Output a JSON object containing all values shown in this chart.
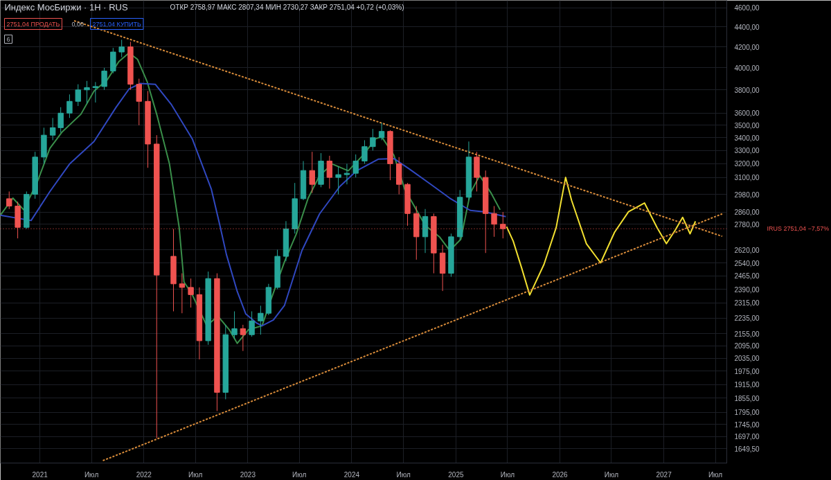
{
  "chart_data": {
    "type": "candlestick",
    "title": "Индекс МосБиржи · 1H · RUS",
    "subtitle": "ОТКР 2758,97  МАКС 2807,34  МИН 2730,27  ЗАКР 2751,04  +0,72 (+0,03%)",
    "annotations": [
      "2751,04 ПРОДАТЬ",
      "0,00",
      "2751,04 КУПИТЬ",
      "6"
    ],
    "x": [
      "2020-09-15",
      "2020-10-15",
      "2020-11-15",
      "2020-12-15",
      "2021-01-15",
      "2021-02-15",
      "2021-03-15",
      "2021-04-15",
      "2021-05-15",
      "2021-06-15",
      "2021-07-15",
      "2021-08-15",
      "2021-09-15",
      "2021-10-15",
      "2021-11-15",
      "2021-12-15",
      "2022-01-15",
      "2022-02-15",
      "2022-04-15",
      "2022-05-15",
      "2022-06-15",
      "2022-07-15",
      "2022-08-15",
      "2022-09-15",
      "2022-10-15",
      "2022-11-15",
      "2022-12-15",
      "2023-01-15",
      "2023-02-15",
      "2023-03-15",
      "2023-04-15",
      "2023-05-15",
      "2023-06-15",
      "2023-07-15",
      "2023-08-15",
      "2023-09-15",
      "2023-10-15",
      "2023-11-15",
      "2023-12-15",
      "2024-01-15",
      "2024-02-15",
      "2024-03-15",
      "2024-04-15",
      "2024-05-15",
      "2024-06-15",
      "2024-07-15",
      "2024-08-15",
      "2024-09-15",
      "2024-10-15",
      "2024-11-15",
      "2024-12-15",
      "2025-01-15",
      "2025-02-15",
      "2025-03-15",
      "2025-04-15",
      "2025-05-15",
      "2025-06-15"
    ],
    "ohlc": [
      [
        2950,
        3000,
        2880,
        2900
      ],
      [
        2900,
        2930,
        2690,
        2760
      ],
      [
        2760,
        3000,
        2750,
        2980
      ],
      [
        2980,
        3290,
        2950,
        3250
      ],
      [
        3250,
        3480,
        3200,
        3420
      ],
      [
        3420,
        3560,
        3380,
        3480
      ],
      [
        3480,
        3650,
        3440,
        3600
      ],
      [
        3600,
        3760,
        3560,
        3700
      ],
      [
        3700,
        3850,
        3660,
        3800
      ],
      [
        3800,
        3880,
        3680,
        3820
      ],
      [
        3820,
        3870,
        3690,
        3830
      ],
      [
        3830,
        4000,
        3800,
        3970
      ],
      [
        3970,
        4190,
        3950,
        4150
      ],
      [
        4150,
        4270,
        4100,
        4200
      ],
      [
        4200,
        4250,
        3800,
        3850
      ],
      [
        3850,
        3900,
        3500,
        3700
      ],
      [
        3700,
        3790,
        3170,
        3350
      ],
      [
        3350,
        3420,
        1690,
        2470
      ],
      [
        2580,
        2750,
        2270,
        2420
      ],
      [
        2420,
        2480,
        2260,
        2400
      ],
      [
        2400,
        2450,
        2290,
        2360
      ],
      [
        2360,
        2400,
        2030,
        2120
      ],
      [
        2120,
        2490,
        2100,
        2450
      ],
      [
        2450,
        2480,
        1800,
        1880
      ],
      [
        1880,
        2200,
        1850,
        2150
      ],
      [
        2150,
        2270,
        2130,
        2180
      ],
      [
        2180,
        2200,
        2070,
        2150
      ],
      [
        2150,
        2270,
        2140,
        2220
      ],
      [
        2220,
        2300,
        2150,
        2260
      ],
      [
        2260,
        2420,
        2250,
        2400
      ],
      [
        2400,
        2620,
        2390,
        2580
      ],
      [
        2580,
        2800,
        2550,
        2750
      ],
      [
        2750,
        3060,
        2720,
        2950
      ],
      [
        2950,
        3220,
        2940,
        3150
      ],
      [
        3150,
        3290,
        2990,
        3050
      ],
      [
        3050,
        3280,
        3030,
        3220
      ],
      [
        3220,
        3260,
        3020,
        3100
      ],
      [
        3100,
        3180,
        2980,
        3120
      ],
      [
        3120,
        3200,
        3050,
        3130
      ],
      [
        3130,
        3270,
        3100,
        3220
      ],
      [
        3220,
        3380,
        3200,
        3330
      ],
      [
        3330,
        3470,
        3300,
        3400
      ],
      [
        3400,
        3520,
        3380,
        3450
      ],
      [
        3450,
        3460,
        3080,
        3200
      ],
      [
        3200,
        3250,
        2980,
        3050
      ],
      [
        3050,
        3060,
        2770,
        2850
      ],
      [
        2850,
        2900,
        2560,
        2700
      ],
      [
        2700,
        2880,
        2600,
        2830
      ],
      [
        2830,
        2850,
        2480,
        2600
      ],
      [
        2600,
        2650,
        2380,
        2480
      ],
      [
        2480,
        2720,
        2460,
        2700
      ],
      [
        2700,
        3010,
        2680,
        2960
      ],
      [
        2960,
        3370,
        2940,
        3250
      ],
      [
        3250,
        3290,
        3000,
        3100
      ],
      [
        3100,
        3150,
        2600,
        2850
      ],
      [
        2850,
        2900,
        2700,
        2780
      ],
      [
        2780,
        2860,
        2690,
        2751.04
      ]
    ],
    "colors": [
      "#ef5350",
      "#ef5350",
      "#26a69a",
      "#26a69a",
      "#26a69a",
      "#26a69a",
      "#26a69a",
      "#26a69a",
      "#26a69a",
      "#26a69a",
      "#26a69a",
      "#26a69a",
      "#26a69a",
      "#26a69a",
      "#ef5350",
      "#ef5350",
      "#ef5350",
      "#ef5350",
      "#ef5350",
      "#ef5350",
      "#ef5350",
      "#ef5350",
      "#26a69a",
      "#ef5350",
      "#26a69a",
      "#26a69a",
      "#ef5350",
      "#26a69a",
      "#26a69a",
      "#26a69a",
      "#26a69a",
      "#26a69a",
      "#26a69a",
      "#26a69a",
      "#ef5350",
      "#26a69a",
      "#ef5350",
      "#26a69a",
      "#26a69a",
      "#26a69a",
      "#26a69a",
      "#26a69a",
      "#26a69a",
      "#ef5350",
      "#ef5350",
      "#ef5350",
      "#ef5350",
      "#26a69a",
      "#ef5350",
      "#ef5350",
      "#26a69a",
      "#26a69a",
      "#26a69a",
      "#ef5350",
      "#ef5350",
      "#ef5350",
      "#ef5350"
    ],
    "series": [
      {
        "type": "line",
        "color": "#3a8f4a",
        "x": [
          "2020-08-15",
          "2020-09-28",
          "2020-11-05",
          "2020-12-22",
          "2021-02-05",
          "2021-03-20",
          "2021-05-25",
          "2021-07-10",
          "2021-08-25",
          "2021-10-05",
          "2021-11-10",
          "2021-12-10",
          "2022-01-13",
          "2022-02-15",
          "2022-04-01",
          "2022-05-05",
          "2022-05-22",
          "2022-06-18",
          "2022-08-10",
          "2022-09-18",
          "2022-10-28",
          "2022-11-25",
          "2023-01-03",
          "2023-02-20",
          "2023-03-25",
          "2023-05-10",
          "2023-06-20",
          "2023-08-01",
          "2023-09-10",
          "2023-10-25",
          "2023-12-20",
          "2024-02-10",
          "2024-03-25",
          "2024-04-15",
          "2024-05-28",
          "2024-07-05",
          "2024-09-15",
          "2024-11-05",
          "2024-12-10",
          "2025-01-18",
          "2025-02-20",
          "2025-03-25",
          "2025-05-05",
          "2025-06-05"
        ],
        "values": [
          2839,
          2954,
          2875,
          3063,
          3317,
          3446,
          3591,
          3790,
          3888,
          4058,
          4142,
          4079,
          3870,
          3591,
          3198,
          2759,
          2430,
          2366,
          2195,
          2245,
          2175,
          2107,
          2175,
          2195,
          2340,
          2549,
          2716,
          2954,
          3113,
          3198,
          3148,
          3265,
          3391,
          3408,
          3265,
          3016,
          2772,
          2698,
          2615,
          2684,
          2987,
          3113,
          2987,
          2875
        ]
      },
      {
        "type": "line",
        "color": "#3048c0",
        "x": [
          "2020-08-15",
          "2020-12-01",
          "2021-02-05",
          "2021-04-15",
          "2021-07-10",
          "2021-09-25",
          "2021-11-10",
          "2021-12-20",
          "2022-02-10",
          "2022-04-08",
          "2022-06-20",
          "2022-08-26",
          "2022-09-25",
          "2022-10-18",
          "2022-11-25",
          "2022-12-25",
          "2023-02-01",
          "2023-02-20",
          "2023-04-01",
          "2023-05-10",
          "2023-07-10",
          "2023-09-10",
          "2023-11-20",
          "2024-01-18",
          "2024-04-03",
          "2024-05-28",
          "2024-07-20",
          "2024-10-05",
          "2024-12-10",
          "2025-02-20",
          "2025-04-10",
          "2025-06-25"
        ],
        "values": [
          2839,
          2804,
          3000,
          3198,
          3370,
          3648,
          3808,
          3857,
          3850,
          3671,
          3391,
          3016,
          2772,
          2590,
          2377,
          2256,
          2209,
          2195,
          2225,
          2302,
          2615,
          2848,
          3035,
          3148,
          3234,
          3239,
          3163,
          3050,
          2954,
          2871,
          2862,
          2830
        ]
      },
      {
        "type": "line",
        "color": "#f2e030",
        "x": [
          "2025-06-28",
          "2025-07-21",
          "2025-08-20",
          "2025-09-17",
          "2025-11-06",
          "2025-12-19",
          "2026-01-21",
          "2026-02-11",
          "2026-04-04",
          "2026-05-24",
          "2026-07-12",
          "2026-08-30",
          "2026-10-25",
          "2026-12-08",
          "2027-01-10",
          "2027-02-10",
          "2027-03-08",
          "2027-04-03",
          "2027-04-22"
        ],
        "values": [
          2764,
          2673,
          2509,
          2358,
          2532,
          2759,
          3100,
          2939,
          2657,
          2541,
          2729,
          2862,
          2921,
          2759,
          2657,
          2742,
          2825,
          2719,
          2799
        ]
      },
      {
        "type": "line",
        "color": "#d98c3a",
        "line_style": "dashed",
        "x": [
          "2021-05-01",
          "2027-07-25"
        ],
        "values": [
          4463,
          2703
        ]
      },
      {
        "type": "line",
        "color": "#d98c3a",
        "line_style": "dashed",
        "x": [
          "2021-08-10",
          "2027-07-25"
        ],
        "values": [
          1604,
          2848
        ]
      }
    ],
    "ref_lines": [
      {
        "axis": "y",
        "value": 2751.04,
        "label": "IRUS 2751,04 −7,57%",
        "color": "#ef5350",
        "line_style": "dotted"
      }
    ],
    "log": "y",
    "grid": true,
    "xlim": [
      "2020-08-15",
      "2027-08-10"
    ],
    "xticks": [
      {
        "value": "2021-01-01",
        "label": "2021"
      },
      {
        "value": "2021-07-01",
        "label": "Июл"
      },
      {
        "value": "2022-01-01",
        "label": "2022"
      },
      {
        "value": "2022-07-01",
        "label": "Июл"
      },
      {
        "value": "2023-01-01",
        "label": "2023"
      },
      {
        "value": "2023-07-01",
        "label": "Июл"
      },
      {
        "value": "2024-01-01",
        "label": "2024"
      },
      {
        "value": "2024-07-01",
        "label": "Июл"
      },
      {
        "value": "2025-01-01",
        "label": "2025"
      },
      {
        "value": "2025-07-01",
        "label": "Июл"
      },
      {
        "value": "2026-01-01",
        "label": "2026"
      },
      {
        "value": "2026-07-01",
        "label": "Июл"
      },
      {
        "value": "2027-01-01",
        "label": "2027"
      },
      {
        "value": "2027-07-01",
        "label": "Июл"
      }
    ],
    "ylim": [
      1595,
      4680
    ],
    "yticks": [
      {
        "value": 1649.5,
        "label": "1649,50"
      },
      {
        "value": 1697,
        "label": "1697,00"
      },
      {
        "value": 1745,
        "label": "1745,00"
      },
      {
        "value": 1795,
        "label": "1795,00"
      },
      {
        "value": 1855,
        "label": "1855,00"
      },
      {
        "value": 1915,
        "label": "1915,00"
      },
      {
        "value": 1975,
        "label": "1975,00"
      },
      {
        "value": 2035,
        "label": "2035,00"
      },
      {
        "value": 2095,
        "label": "2095,00"
      },
      {
        "value": 2155,
        "label": "2155,00"
      },
      {
        "value": 2235,
        "label": "2235,00"
      },
      {
        "value": 2315,
        "label": "2315,00"
      },
      {
        "value": 2390,
        "label": "2390,00"
      },
      {
        "value": 2465,
        "label": "2465,00"
      },
      {
        "value": 2540,
        "label": "2540,00"
      },
      {
        "value": 2620,
        "label": "2620,00"
      },
      {
        "value": 2780,
        "label": "2780,00"
      },
      {
        "value": 2860,
        "label": "2860,00"
      },
      {
        "value": 2980,
        "label": "2980,00"
      },
      {
        "value": 3100,
        "label": "3100,00"
      },
      {
        "value": 3200,
        "label": "3200,00"
      },
      {
        "value": 3300,
        "label": "3300,00"
      },
      {
        "value": 3400,
        "label": "3400,00"
      },
      {
        "value": 3500,
        "label": "3500,00"
      },
      {
        "value": 3600,
        "label": "3600,00"
      },
      {
        "value": 3800,
        "label": "3800,00"
      },
      {
        "value": 4000,
        "label": "4000,00"
      },
      {
        "value": 4200,
        "label": "4200,00"
      },
      {
        "value": 4400,
        "label": "4400,00"
      },
      {
        "value": 4600,
        "label": "4600,00"
      }
    ]
  }
}
